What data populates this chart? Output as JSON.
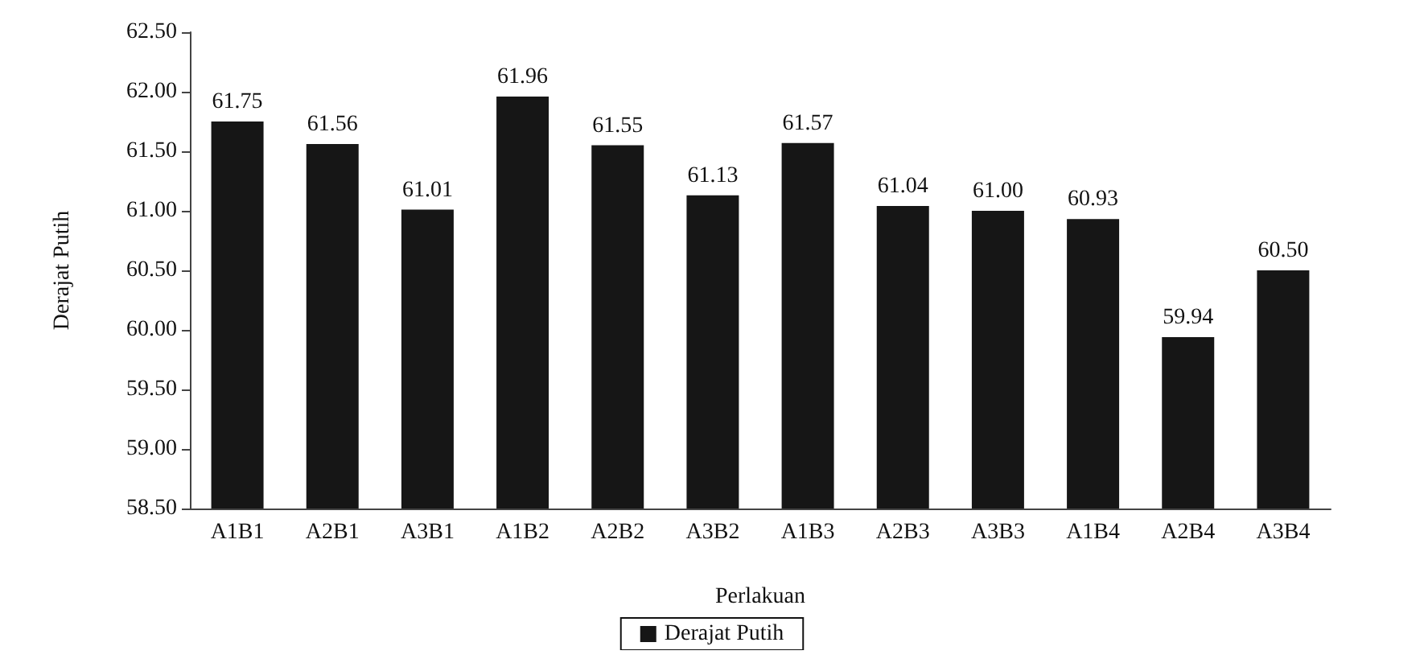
{
  "chart_data": {
    "type": "bar",
    "xlabel": "Perlakuan",
    "ylabel": "Derajat Putih",
    "categories": [
      "A1B1",
      "A2B1",
      "A3B1",
      "A1B2",
      "A2B2",
      "A3B2",
      "A1B3",
      "A2B3",
      "A3B3",
      "A1B4",
      "A2B4",
      "A3B4"
    ],
    "series": [
      {
        "name": "Derajat Putih",
        "color": "#161616",
        "values": [
          61.75,
          61.56,
          61.01,
          61.96,
          61.55,
          61.13,
          61.57,
          61.04,
          61.0,
          60.93,
          59.94,
          60.5
        ],
        "value_labels": [
          "61.75",
          "61.56",
          "61.01",
          "61.96",
          "61.55",
          "61.13",
          "61.57",
          "61.04",
          "61.00",
          "60.93",
          "59.94",
          "60.50"
        ]
      }
    ],
    "ylim": [
      58.5,
      62.5
    ],
    "yticks": [
      {
        "value": 58.5,
        "label": "58.50"
      },
      {
        "value": 59,
        "label": "59.00"
      },
      {
        "value": 59.5,
        "label": "59.50"
      },
      {
        "value": 60,
        "label": "60.00"
      },
      {
        "value": 60.5,
        "label": "60.50"
      },
      {
        "value": 61,
        "label": "61.00"
      },
      {
        "value": 61.5,
        "label": "61.50"
      },
      {
        "value": 62,
        "label": "62.00"
      },
      {
        "value": 62.5,
        "label": "62.50"
      }
    ],
    "grid": false,
    "legend": "bottom"
  }
}
